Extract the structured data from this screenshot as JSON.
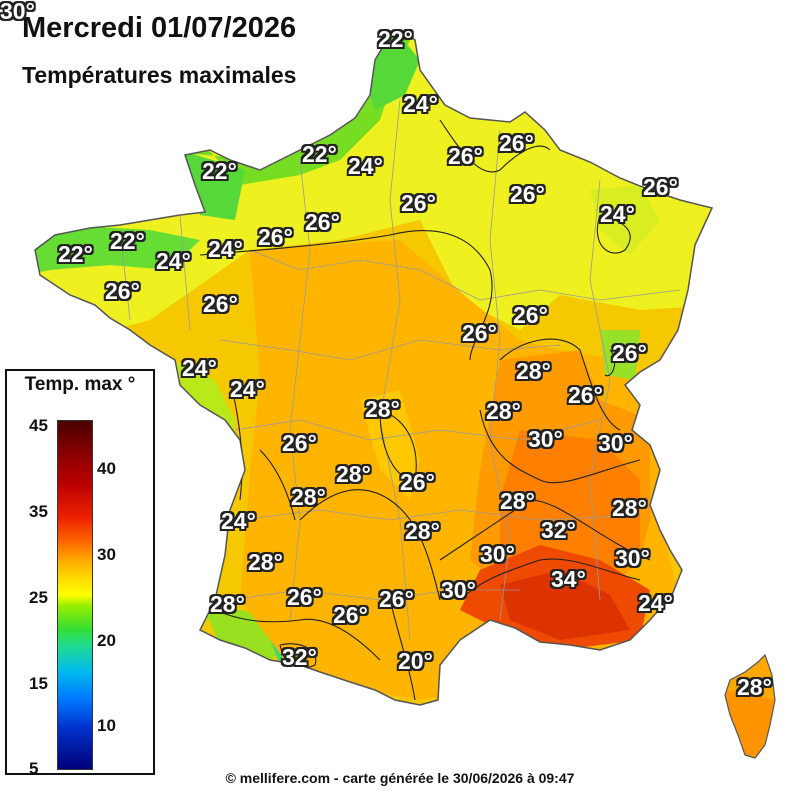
{
  "title": "Mercredi 01/07/2026",
  "subtitle": "Températures maximales",
  "legend": {
    "title": "Temp. max °",
    "ticks_left": [
      "45",
      "35",
      "25",
      "15",
      "5"
    ],
    "ticks_right": [
      "40",
      "30",
      "20",
      "10"
    ],
    "range": [
      5,
      45
    ]
  },
  "footer": "© mellifere.com - carte générée le 30/06/2026 à 09:47",
  "colors": {
    "cool_green": "#33cc33",
    "mild_yellow": "#eeee22",
    "warm_orange": "#ffb000",
    "hot_red": "#ee4400",
    "contour_line": "#222222"
  },
  "labels": [
    {
      "text": "22°",
      "region": "cotentin"
    },
    {
      "text": "24°",
      "region": "haute-normandie"
    },
    {
      "text": "22°",
      "region": "normandie-cote"
    },
    {
      "text": "24°",
      "region": "normandie"
    },
    {
      "text": "26°",
      "region": "champagne-ardenne"
    },
    {
      "text": "26°",
      "region": "ardennes"
    },
    {
      "text": "22°",
      "region": "bretagne-nord"
    },
    {
      "text": "26°",
      "region": "lorraine"
    },
    {
      "text": "26°",
      "region": "alsace"
    },
    {
      "text": "26°",
      "region": "ile-de-france"
    },
    {
      "text": "26°",
      "region": "centre-nord"
    },
    {
      "text": "26°",
      "region": "normandie-sud"
    },
    {
      "text": "24°",
      "region": "bretagne-centre"
    },
    {
      "text": "22°",
      "region": "finistere"
    },
    {
      "text": "22°",
      "region": "cotes-darmor"
    },
    {
      "text": "24°",
      "region": "ille-et-vilaine"
    },
    {
      "text": "24°",
      "region": "mayenne"
    },
    {
      "text": "26°",
      "region": "vosges"
    },
    {
      "text": "26°",
      "region": "morbihan"
    },
    {
      "text": "26°",
      "region": "pays-de-la-loire"
    },
    {
      "text": "26°",
      "region": "bourgogne"
    },
    {
      "text": "26°",
      "region": "franche-comte"
    },
    {
      "text": "24°",
      "region": "haute-savoie"
    },
    {
      "text": "24°",
      "region": "vendee"
    },
    {
      "text": "28°",
      "region": "rhone"
    },
    {
      "text": "26°",
      "region": "charente"
    },
    {
      "text": "28°",
      "region": "savoie"
    },
    {
      "text": "26°",
      "region": "limousin"
    },
    {
      "text": "28°",
      "region": "isere"
    },
    {
      "text": "30°",
      "region": "drome"
    },
    {
      "text": "30°",
      "region": "hautes-alpes"
    },
    {
      "text": "28°",
      "region": "dordogne"
    },
    {
      "text": "28°",
      "region": "correze"
    },
    {
      "text": "26°",
      "region": "cantal"
    },
    {
      "text": "28°",
      "region": "gironde-est"
    },
    {
      "text": "24°",
      "region": "gironde"
    },
    {
      "text": "28°",
      "region": "ardeche"
    },
    {
      "text": "28°",
      "region": "alpes-haute-provence"
    },
    {
      "text": "32°",
      "region": "vaucluse"
    },
    {
      "text": "28°",
      "region": "lot"
    },
    {
      "text": "26°",
      "region": "landes"
    },
    {
      "text": "30°",
      "region": "gard"
    },
    {
      "text": "30°",
      "region": "alpes-maritimes"
    },
    {
      "text": "34°",
      "region": "bouches-du-rhone"
    },
    {
      "text": "26°",
      "region": "gers"
    },
    {
      "text": "26°",
      "region": "lot-et-garonne"
    },
    {
      "text": "28°",
      "region": "tarn"
    },
    {
      "text": "30°",
      "region": "herault"
    },
    {
      "text": "24°",
      "region": "pyrenees-atlantiques-cote"
    },
    {
      "text": "32°",
      "region": "var"
    },
    {
      "text": "20°",
      "region": "pyrenees-atlantiques"
    },
    {
      "text": "28°",
      "region": "aude"
    },
    {
      "text": "30°",
      "region": "corse"
    }
  ]
}
